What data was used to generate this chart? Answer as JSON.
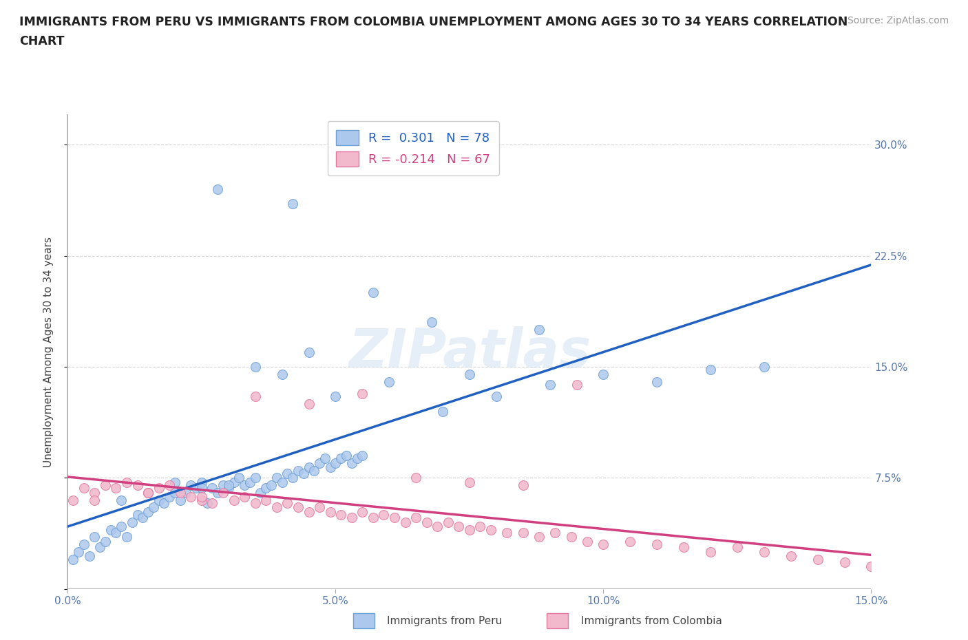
{
  "title_line1": "IMMIGRANTS FROM PERU VS IMMIGRANTS FROM COLOMBIA UNEMPLOYMENT AMONG AGES 30 TO 34 YEARS CORRELATION",
  "title_line2": "CHART",
  "source": "Source: ZipAtlas.com",
  "ylabel": "Unemployment Among Ages 30 to 34 years",
  "xlim": [
    0.0,
    0.15
  ],
  "ylim": [
    0.0,
    0.32
  ],
  "xticks": [
    0.0,
    0.05,
    0.1,
    0.15
  ],
  "xticklabels": [
    "0.0%",
    "5.0%",
    "10.0%",
    "15.0%"
  ],
  "yticks": [
    0.0,
    0.075,
    0.15,
    0.225,
    0.3
  ],
  "right_yticklabels": [
    "",
    "7.5%",
    "15.0%",
    "22.5%",
    "30.0%"
  ],
  "peru_color": "#adc8ed",
  "peru_edge": "#6fa0d4",
  "colombia_color": "#f2b8cb",
  "colombia_edge": "#e07aa0",
  "peru_line_color": "#2060c0",
  "colombia_line_color": "#d04080",
  "peru_R": 0.301,
  "peru_N": 78,
  "colombia_R": -0.214,
  "colombia_N": 67,
  "legend_peru_label": "Immigrants from Peru",
  "legend_colombia_label": "Immigrants from Colombia",
  "watermark": "ZIPatlas",
  "background_color": "#ffffff",
  "grid_color": "#c8c8c8",
  "title_color": "#222222",
  "axis_label_color": "#444444",
  "tick_color": "#5577aa",
  "peru_scatter_x": [
    0.001,
    0.002,
    0.003,
    0.004,
    0.005,
    0.006,
    0.007,
    0.008,
    0.009,
    0.01,
    0.011,
    0.012,
    0.013,
    0.014,
    0.015,
    0.016,
    0.017,
    0.018,
    0.019,
    0.02,
    0.021,
    0.022,
    0.023,
    0.024,
    0.025,
    0.026,
    0.027,
    0.028,
    0.029,
    0.03,
    0.031,
    0.032,
    0.033,
    0.034,
    0.035,
    0.036,
    0.037,
    0.038,
    0.039,
    0.04,
    0.041,
    0.042,
    0.043,
    0.044,
    0.045,
    0.046,
    0.047,
    0.048,
    0.049,
    0.05,
    0.051,
    0.052,
    0.053,
    0.054,
    0.055,
    0.01,
    0.015,
    0.02,
    0.025,
    0.03,
    0.035,
    0.04,
    0.045,
    0.05,
    0.06,
    0.07,
    0.08,
    0.09,
    0.1,
    0.11,
    0.12,
    0.13,
    0.028,
    0.042,
    0.057,
    0.068,
    0.088,
    0.075
  ],
  "peru_scatter_y": [
    0.02,
    0.025,
    0.03,
    0.022,
    0.035,
    0.028,
    0.032,
    0.04,
    0.038,
    0.042,
    0.035,
    0.045,
    0.05,
    0.048,
    0.052,
    0.055,
    0.06,
    0.058,
    0.062,
    0.065,
    0.06,
    0.065,
    0.07,
    0.068,
    0.072,
    0.058,
    0.068,
    0.065,
    0.07,
    0.068,
    0.072,
    0.075,
    0.07,
    0.072,
    0.075,
    0.065,
    0.068,
    0.07,
    0.075,
    0.072,
    0.078,
    0.075,
    0.08,
    0.078,
    0.082,
    0.08,
    0.085,
    0.088,
    0.082,
    0.085,
    0.088,
    0.09,
    0.085,
    0.088,
    0.09,
    0.06,
    0.065,
    0.072,
    0.068,
    0.07,
    0.15,
    0.145,
    0.16,
    0.13,
    0.14,
    0.12,
    0.13,
    0.138,
    0.145,
    0.14,
    0.148,
    0.15,
    0.27,
    0.26,
    0.2,
    0.18,
    0.175,
    0.145
  ],
  "colombia_scatter_x": [
    0.001,
    0.003,
    0.005,
    0.007,
    0.009,
    0.011,
    0.013,
    0.015,
    0.017,
    0.019,
    0.021,
    0.023,
    0.025,
    0.027,
    0.029,
    0.031,
    0.033,
    0.035,
    0.037,
    0.039,
    0.041,
    0.043,
    0.045,
    0.047,
    0.049,
    0.051,
    0.053,
    0.055,
    0.057,
    0.059,
    0.061,
    0.063,
    0.065,
    0.067,
    0.069,
    0.071,
    0.073,
    0.075,
    0.077,
    0.079,
    0.082,
    0.085,
    0.088,
    0.091,
    0.094,
    0.097,
    0.1,
    0.105,
    0.11,
    0.115,
    0.12,
    0.125,
    0.13,
    0.135,
    0.14,
    0.145,
    0.15,
    0.005,
    0.015,
    0.025,
    0.035,
    0.045,
    0.055,
    0.065,
    0.075,
    0.085,
    0.095
  ],
  "colombia_scatter_y": [
    0.06,
    0.068,
    0.065,
    0.07,
    0.068,
    0.072,
    0.07,
    0.065,
    0.068,
    0.07,
    0.065,
    0.062,
    0.06,
    0.058,
    0.065,
    0.06,
    0.062,
    0.058,
    0.06,
    0.055,
    0.058,
    0.055,
    0.052,
    0.055,
    0.052,
    0.05,
    0.048,
    0.052,
    0.048,
    0.05,
    0.048,
    0.045,
    0.048,
    0.045,
    0.042,
    0.045,
    0.042,
    0.04,
    0.042,
    0.04,
    0.038,
    0.038,
    0.035,
    0.038,
    0.035,
    0.032,
    0.03,
    0.032,
    0.03,
    0.028,
    0.025,
    0.028,
    0.025,
    0.022,
    0.02,
    0.018,
    0.015,
    0.06,
    0.065,
    0.062,
    0.13,
    0.125,
    0.132,
    0.075,
    0.072,
    0.07,
    0.138
  ]
}
